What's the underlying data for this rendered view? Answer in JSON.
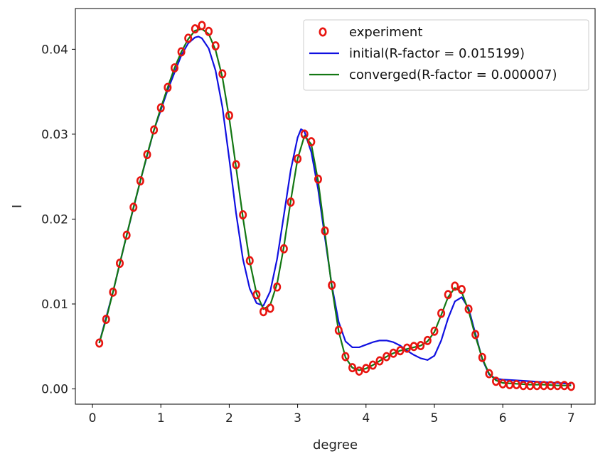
{
  "chart_data": {
    "type": "line",
    "title": "",
    "xlabel": "degree",
    "ylabel": "I",
    "xlim": [
      -0.25,
      7.35
    ],
    "ylim": [
      -0.0018,
      0.0448
    ],
    "x_ticks": [
      0,
      1,
      2,
      3,
      4,
      5,
      6,
      7
    ],
    "x_tick_labels": [
      "0",
      "1",
      "2",
      "3",
      "4",
      "5",
      "6",
      "7"
    ],
    "y_ticks": [
      0.0,
      0.01,
      0.02,
      0.03,
      0.04
    ],
    "y_tick_labels": [
      "0.00",
      "0.01",
      "0.02",
      "0.03",
      "0.04"
    ],
    "grid": false,
    "legend_position": "top-right",
    "series": [
      {
        "name": "experiment",
        "style": "markers",
        "marker": "o",
        "color": "#e8140f",
        "x": [
          0.1,
          0.2,
          0.3,
          0.4,
          0.5,
          0.6,
          0.7,
          0.8,
          0.9,
          1.0,
          1.1,
          1.2,
          1.3,
          1.4,
          1.5,
          1.6,
          1.7,
          1.8,
          1.9,
          2.0,
          2.1,
          2.2,
          2.3,
          2.4,
          2.5,
          2.6,
          2.7,
          2.8,
          2.9,
          3.0,
          3.1,
          3.2,
          3.3,
          3.4,
          3.5,
          3.6,
          3.7,
          3.8,
          3.9,
          4.0,
          4.1,
          4.2,
          4.3,
          4.4,
          4.5,
          4.6,
          4.7,
          4.8,
          4.9,
          5.0,
          5.1,
          5.2,
          5.3,
          5.4,
          5.5,
          5.6,
          5.7,
          5.8,
          5.9,
          6.0,
          6.1,
          6.2,
          6.3,
          6.4,
          6.5,
          6.6,
          6.7,
          6.8,
          6.9,
          7.0
        ],
        "y": [
          0.0054,
          0.0082,
          0.0114,
          0.0148,
          0.0181,
          0.0214,
          0.0245,
          0.0276,
          0.0305,
          0.0331,
          0.0355,
          0.0378,
          0.0397,
          0.0413,
          0.0424,
          0.0428,
          0.0421,
          0.0404,
          0.0371,
          0.0322,
          0.0264,
          0.0205,
          0.0151,
          0.0111,
          0.0091,
          0.0095,
          0.012,
          0.0165,
          0.022,
          0.0271,
          0.03,
          0.0291,
          0.0247,
          0.0186,
          0.0122,
          0.0069,
          0.0038,
          0.0025,
          0.0021,
          0.0024,
          0.0028,
          0.0033,
          0.0038,
          0.0042,
          0.0045,
          0.0048,
          0.005,
          0.0051,
          0.0057,
          0.0068,
          0.0089,
          0.0111,
          0.0121,
          0.0117,
          0.0094,
          0.0064,
          0.0037,
          0.0018,
          0.0009,
          0.0006,
          0.0005,
          0.0005,
          0.0004,
          0.0004,
          0.0004,
          0.0004,
          0.0004,
          0.0004,
          0.0004,
          0.0003
        ]
      },
      {
        "name": "initial(R-factor = 0.015199)",
        "style": "line",
        "color": "#1010e0",
        "x": [
          0.1,
          0.3,
          0.5,
          0.7,
          0.9,
          1.1,
          1.3,
          1.4,
          1.5,
          1.55,
          1.6,
          1.7,
          1.8,
          1.9,
          2.0,
          2.1,
          2.2,
          2.3,
          2.4,
          2.5,
          2.6,
          2.7,
          2.8,
          2.9,
          3.0,
          3.05,
          3.1,
          3.2,
          3.3,
          3.4,
          3.5,
          3.6,
          3.7,
          3.8,
          3.9,
          4.0,
          4.1,
          4.2,
          4.3,
          4.4,
          4.5,
          4.6,
          4.7,
          4.8,
          4.9,
          5.0,
          5.1,
          5.2,
          5.3,
          5.4,
          5.5,
          5.6,
          5.7,
          5.8,
          5.9,
          6.0,
          6.2,
          6.4,
          6.6,
          6.8,
          7.0
        ],
        "y": [
          0.0054,
          0.0114,
          0.0181,
          0.0245,
          0.0305,
          0.0352,
          0.0393,
          0.0407,
          0.0414,
          0.0415,
          0.0413,
          0.0401,
          0.0375,
          0.0332,
          0.0271,
          0.0207,
          0.0153,
          0.0118,
          0.0101,
          0.0098,
          0.0115,
          0.0153,
          0.0205,
          0.0258,
          0.0296,
          0.0306,
          0.0303,
          0.0279,
          0.0235,
          0.0178,
          0.0122,
          0.0079,
          0.0056,
          0.0049,
          0.0049,
          0.0052,
          0.0055,
          0.0057,
          0.0057,
          0.0055,
          0.0051,
          0.0045,
          0.004,
          0.0036,
          0.0034,
          0.0039,
          0.0057,
          0.0083,
          0.0103,
          0.0108,
          0.0095,
          0.0065,
          0.0035,
          0.0017,
          0.0012,
          0.0011,
          0.001,
          0.0009,
          0.0008,
          0.0007,
          0.0006
        ]
      },
      {
        "name": "converged(R-factor = 0.000007)",
        "style": "line",
        "color": "#137713",
        "x": [
          0.1,
          0.2,
          0.3,
          0.4,
          0.5,
          0.6,
          0.7,
          0.8,
          0.9,
          1.0,
          1.1,
          1.2,
          1.3,
          1.4,
          1.5,
          1.6,
          1.7,
          1.8,
          1.9,
          2.0,
          2.1,
          2.2,
          2.3,
          2.4,
          2.5,
          2.6,
          2.7,
          2.8,
          2.9,
          3.0,
          3.1,
          3.2,
          3.3,
          3.4,
          3.5,
          3.6,
          3.7,
          3.8,
          3.9,
          4.0,
          4.1,
          4.2,
          4.3,
          4.4,
          4.5,
          4.6,
          4.7,
          4.8,
          4.9,
          5.0,
          5.1,
          5.2,
          5.3,
          5.4,
          5.5,
          5.6,
          5.7,
          5.8,
          5.9,
          6.0,
          6.2,
          6.4,
          6.6,
          6.8,
          7.0
        ],
        "y": [
          0.0054,
          0.0082,
          0.0114,
          0.0148,
          0.0181,
          0.0214,
          0.0245,
          0.0276,
          0.0305,
          0.0331,
          0.0355,
          0.0378,
          0.0397,
          0.0412,
          0.0422,
          0.0424,
          0.0418,
          0.0399,
          0.0367,
          0.0319,
          0.0261,
          0.0202,
          0.015,
          0.0112,
          0.0094,
          0.0099,
          0.0124,
          0.0168,
          0.0222,
          0.0271,
          0.0298,
          0.0288,
          0.0245,
          0.0183,
          0.012,
          0.0068,
          0.0037,
          0.0025,
          0.0022,
          0.0024,
          0.0028,
          0.0033,
          0.0038,
          0.0042,
          0.0045,
          0.0047,
          0.0049,
          0.0051,
          0.0056,
          0.0067,
          0.0087,
          0.0108,
          0.0119,
          0.0114,
          0.0092,
          0.0062,
          0.0036,
          0.0018,
          0.001,
          0.0007,
          0.0006,
          0.0005,
          0.0005,
          0.0004,
          0.0004
        ]
      }
    ]
  }
}
